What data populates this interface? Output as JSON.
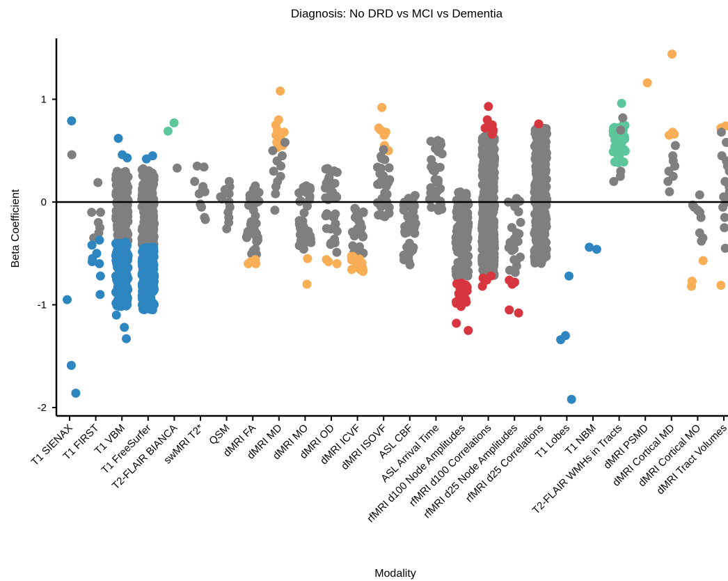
{
  "chart_data": {
    "type": "scatter",
    "title": "Diagnosis: No DRD vs MCI vs Dementia",
    "xlabel": "Modality",
    "ylabel": "Beta Coefficient",
    "ylim": [
      -2.1,
      1.6
    ],
    "yticks": [
      1,
      0,
      -1,
      -2
    ],
    "ytick_labels": [
      "1",
      "0",
      "-1",
      "-2"
    ],
    "reference_line_y": 0,
    "grid": false,
    "legend": "none",
    "colors": {
      "ns": "#7f7f7f",
      "blue": "#2e86c1",
      "green": "#5dc79b",
      "orange": "#f8ad57",
      "red": "#d7363f",
      "axis": "#000000"
    },
    "categories": [
      "T1 SIENAX",
      "T1 FIRST",
      "T1 VBM",
      "T1 FreeSurfer",
      "T2-FLAIR BIANCA",
      "swMRI T2*",
      "QSM",
      "dMRI FA",
      "dMRI MD",
      "dMRI MO",
      "dMRI OD",
      "dMRI ICVF",
      "dMRI ISOVF",
      "ASL CBF",
      "ASL Arrival Time",
      "rfMRI d100 Node Amplitudes",
      "rfMRI d100 Correlations",
      "rfMRI d25 Node Amplitudes",
      "rfMRI d25 Correlations",
      "T1 Lobes",
      "T1 NBM",
      "T2-FLAIR WMHs in Tracts",
      "dMRI PSMD",
      "dMRI Cortical MD",
      "dMRI Cortical MO",
      "dMRI Tract Volumes"
    ],
    "series": [
      {
        "category": "T1 SIENAX",
        "color": "blue",
        "values": [
          0.79,
          -0.95,
          -1.59,
          -1.86
        ]
      },
      {
        "category": "T1 SIENAX",
        "color": "ns",
        "values": [
          0.46
        ]
      },
      {
        "category": "T1 FIRST",
        "color": "ns",
        "values": [
          0.19,
          -0.1,
          -0.1,
          -0.2,
          -0.25,
          -0.3,
          -0.35
        ]
      },
      {
        "category": "T1 FIRST",
        "color": "blue",
        "values": [
          -0.37,
          -0.42,
          -0.5,
          -0.55,
          -0.58,
          -0.6,
          -0.72,
          -0.9
        ]
      },
      {
        "category": "T1 VBM",
        "color": "ns",
        "range": [
          -0.38,
          0.3
        ],
        "count": 160
      },
      {
        "category": "T1 VBM",
        "color": "blue",
        "range": [
          -1.02,
          -0.38
        ],
        "count": 150
      },
      {
        "category": "T1 VBM",
        "color": "blue",
        "values": [
          0.62,
          0.46,
          0.43,
          -1.1,
          -1.22,
          -1.33
        ]
      },
      {
        "category": "T1 FreeSurfer",
        "color": "ns",
        "range": [
          -0.42,
          0.34
        ],
        "count": 190
      },
      {
        "category": "T1 FreeSurfer",
        "color": "blue",
        "range": [
          -1.05,
          -0.42
        ],
        "count": 170
      },
      {
        "category": "T1 FreeSurfer",
        "color": "blue",
        "values": [
          0.45,
          0.42
        ]
      },
      {
        "category": "T2-FLAIR BIANCA",
        "color": "green",
        "values": [
          0.77,
          0.69
        ]
      },
      {
        "category": "T2-FLAIR BIANCA",
        "color": "ns",
        "values": [
          0.33
        ]
      },
      {
        "category": "swMRI T2*",
        "color": "ns",
        "values": [
          0.35,
          0.34,
          0.2,
          0.15,
          0.12,
          0.1,
          0.08,
          -0.02,
          -0.05,
          -0.15,
          -0.17
        ]
      },
      {
        "category": "QSM",
        "color": "ns",
        "values": [
          0.2,
          0.15,
          0.12,
          0.1,
          0.08,
          0.05,
          0.03,
          0.0,
          -0.05,
          -0.1,
          -0.15,
          -0.2,
          -0.26
        ]
      },
      {
        "category": "dMRI FA",
        "color": "ns",
        "range": [
          -0.52,
          0.16
        ],
        "count": 40
      },
      {
        "category": "dMRI FA",
        "color": "orange",
        "values": [
          -0.56,
          -0.58,
          -0.6,
          -0.6
        ]
      },
      {
        "category": "dMRI MD",
        "color": "orange",
        "values": [
          1.08,
          0.8,
          0.75,
          0.7,
          0.68,
          0.65,
          0.62,
          0.6,
          0.58,
          0.55,
          0.53
        ]
      },
      {
        "category": "dMRI MD",
        "color": "ns",
        "values": [
          0.58,
          0.5,
          0.45,
          0.4,
          0.35,
          0.3,
          0.25,
          0.2,
          0.15,
          0.08,
          -0.08
        ]
      },
      {
        "category": "dMRI MO",
        "color": "ns",
        "range": [
          -0.46,
          0.17
        ],
        "count": 40
      },
      {
        "category": "dMRI MO",
        "color": "orange",
        "values": [
          -0.55,
          -0.8
        ]
      },
      {
        "category": "dMRI OD",
        "color": "ns",
        "range": [
          -0.5,
          0.33
        ],
        "count": 35
      },
      {
        "category": "dMRI OD",
        "color": "orange",
        "values": [
          -0.56,
          -0.58,
          -0.6
        ]
      },
      {
        "category": "dMRI ICVF",
        "color": "ns",
        "range": [
          -0.5,
          -0.02
        ],
        "count": 25
      },
      {
        "category": "dMRI ICVF",
        "color": "orange",
        "range": [
          -0.68,
          -0.52
        ],
        "count": 16
      },
      {
        "category": "dMRI ISOVF",
        "color": "orange",
        "values": [
          0.92,
          0.72,
          0.7,
          0.68,
          0.65,
          0.55,
          0.5
        ]
      },
      {
        "category": "dMRI ISOVF",
        "color": "ns",
        "range": [
          -0.16,
          0.52
        ],
        "count": 30
      },
      {
        "category": "ASL CBF",
        "color": "ns",
        "range": [
          -0.65,
          0.11
        ],
        "count": 45
      },
      {
        "category": "ASL Arrival Time",
        "color": "ns",
        "range": [
          -0.1,
          0.6
        ],
        "count": 35
      },
      {
        "category": "rfMRI d100 Node Amplitudes",
        "color": "ns",
        "range": [
          -0.75,
          0.1
        ],
        "count": 120
      },
      {
        "category": "rfMRI d100 Node Amplitudes",
        "color": "red",
        "range": [
          -1.02,
          -0.78
        ],
        "count": 25
      },
      {
        "category": "rfMRI d100 Node Amplitudes",
        "color": "red",
        "values": [
          -1.18,
          -1.25
        ]
      },
      {
        "category": "rfMRI d100 Correlations",
        "color": "ns",
        "range": [
          -0.72,
          0.65
        ],
        "count": 500
      },
      {
        "category": "rfMRI d100 Correlations",
        "color": "red",
        "values": [
          0.93,
          0.8,
          0.75,
          0.72,
          0.7,
          0.68,
          0.66,
          -0.72,
          -0.74,
          -0.76,
          -0.82
        ]
      },
      {
        "category": "rfMRI d25 Node Amplitudes",
        "color": "ns",
        "range": [
          -0.72,
          0.08
        ],
        "count": 25
      },
      {
        "category": "rfMRI d25 Node Amplitudes",
        "color": "red",
        "values": [
          -0.76,
          -0.78,
          -0.8,
          -1.05,
          -1.08
        ]
      },
      {
        "category": "rfMRI d25 Correlations",
        "color": "ns",
        "range": [
          -0.6,
          0.72
        ],
        "count": 280
      },
      {
        "category": "rfMRI d25 Correlations",
        "color": "red",
        "values": [
          0.76
        ]
      },
      {
        "category": "T1 Lobes",
        "color": "blue",
        "values": [
          -0.72,
          -1.3,
          -1.34,
          -1.92
        ]
      },
      {
        "category": "T1 NBM",
        "color": "blue",
        "values": [
          -0.44,
          -0.46
        ]
      },
      {
        "category": "T2-FLAIR WMHs in Tracts",
        "color": "green",
        "range": [
          0.38,
          0.75
        ],
        "count": 35
      },
      {
        "category": "T2-FLAIR WMHs in Tracts",
        "color": "green",
        "values": [
          0.96
        ]
      },
      {
        "category": "T2-FLAIR WMHs in Tracts",
        "color": "ns",
        "values": [
          0.82,
          0.7,
          0.3,
          0.25,
          0.2
        ]
      },
      {
        "category": "dMRI PSMD",
        "color": "orange",
        "values": [
          1.16
        ]
      },
      {
        "category": "dMRI Cortical MD",
        "color": "orange",
        "values": [
          1.44,
          0.68,
          0.66,
          0.65
        ]
      },
      {
        "category": "dMRI Cortical MD",
        "color": "ns",
        "values": [
          0.55,
          0.45,
          0.4,
          0.35,
          0.3,
          0.25,
          0.2,
          0.1
        ]
      },
      {
        "category": "dMRI Cortical MO",
        "color": "ns",
        "values": [
          0.07,
          -0.03,
          -0.05,
          -0.08,
          -0.1,
          -0.15,
          -0.3,
          -0.35,
          -0.38
        ]
      },
      {
        "category": "dMRI Cortical MO",
        "color": "orange",
        "values": [
          -0.57,
          -0.77,
          -0.82
        ]
      },
      {
        "category": "dMRI Tract Volumes",
        "color": "orange",
        "values": [
          0.74,
          0.72,
          -0.81
        ]
      },
      {
        "category": "dMRI Tract Volumes",
        "color": "ns",
        "values": [
          0.68,
          0.58,
          0.45,
          0.4,
          0.35,
          0.3,
          0.2,
          0.15,
          0.1,
          0.05,
          0.0,
          -0.05,
          -0.15,
          -0.25,
          -0.45
        ]
      }
    ]
  }
}
